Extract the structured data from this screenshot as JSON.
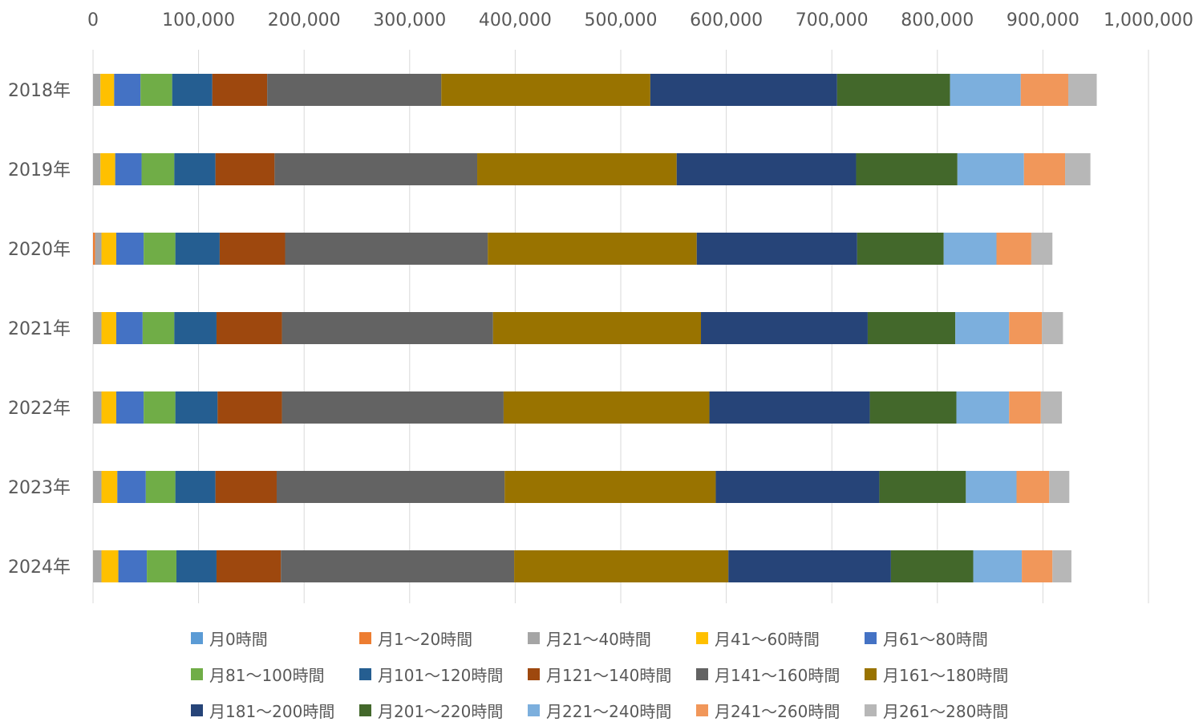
{
  "chart_data": {
    "type": "bar",
    "orientation": "horizontal",
    "stacked": true,
    "xlim": [
      0,
      1000000
    ],
    "x_ticks": [
      "0",
      "100,000",
      "200,000",
      "300,000",
      "400,000",
      "500,000",
      "600,000",
      "700,000",
      "800,000",
      "900,000",
      "1,000,000"
    ],
    "x_tick_values": [
      0,
      100000,
      200000,
      300000,
      400000,
      500000,
      600000,
      700000,
      800000,
      900000,
      1000000
    ],
    "categories": [
      "2018年",
      "2019年",
      "2020年",
      "2021年",
      "2022年",
      "2023年",
      "2024年"
    ],
    "grid": true,
    "legend_position": "bottom",
    "series": [
      {
        "name": "月0時間",
        "color": "#5B9BD5",
        "values": [
          0,
          0,
          0,
          0,
          0,
          0,
          0
        ]
      },
      {
        "name": "月1～20時間",
        "color": "#ED7D31",
        "values": [
          0,
          0,
          2000,
          0,
          0,
          0,
          0
        ]
      },
      {
        "name": "月21～40時間",
        "color": "#A5A5A5",
        "values": [
          7000,
          7000,
          6000,
          8000,
          8000,
          8000,
          8000
        ]
      },
      {
        "name": "月41～60時間",
        "color": "#FFC000",
        "values": [
          13000,
          14000,
          14000,
          14000,
          14000,
          15000,
          16000
        ]
      },
      {
        "name": "月61～80時間",
        "color": "#4472C4",
        "values": [
          25000,
          25000,
          26000,
          25000,
          26000,
          27000,
          27000
        ]
      },
      {
        "name": "月81～100時間",
        "color": "#70AD47",
        "values": [
          30000,
          31000,
          30000,
          30000,
          30000,
          28000,
          28000
        ]
      },
      {
        "name": "月101～120時間",
        "color": "#255E91",
        "values": [
          38000,
          39000,
          42000,
          40000,
          40000,
          38000,
          38000
        ]
      },
      {
        "name": "月121～140時間",
        "color": "#9E480E",
        "values": [
          52000,
          56000,
          62000,
          62000,
          61000,
          58000,
          61000
        ]
      },
      {
        "name": "月141～160時間",
        "color": "#636363",
        "values": [
          165000,
          192000,
          192000,
          200000,
          210000,
          216000,
          221000
        ]
      },
      {
        "name": "月161～180時間",
        "color": "#997300",
        "values": [
          198000,
          189000,
          198000,
          197000,
          195000,
          200000,
          203000
        ]
      },
      {
        "name": "月181～200時間",
        "color": "#264478",
        "values": [
          177000,
          170000,
          152000,
          158000,
          152000,
          155000,
          154000
        ]
      },
      {
        "name": "月201～220時間",
        "color": "#43682B",
        "values": [
          107000,
          96000,
          82000,
          83000,
          82000,
          82000,
          78000
        ]
      },
      {
        "name": "月221～240時間",
        "color": "#7CAFDD",
        "values": [
          67000,
          63000,
          50000,
          51000,
          50000,
          48000,
          46000
        ]
      },
      {
        "name": "月241～260時間",
        "color": "#F1975A",
        "values": [
          45000,
          39000,
          33000,
          31000,
          30000,
          31000,
          29000
        ]
      },
      {
        "name": "月261～280時間",
        "color": "#B7B7B7",
        "values": [
          27000,
          24000,
          20000,
          20000,
          20000,
          19000,
          18000
        ]
      }
    ]
  }
}
